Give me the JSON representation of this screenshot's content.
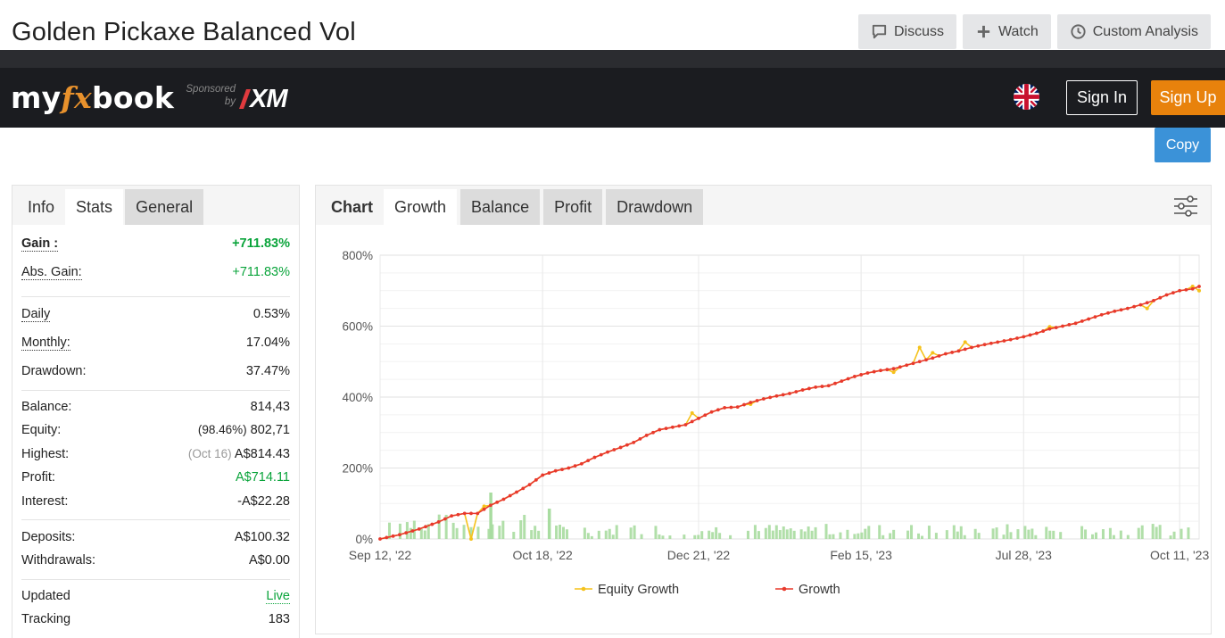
{
  "page": {
    "title": "Golden Pickaxe Balanced Vol"
  },
  "top_actions": [
    {
      "label": "Discuss",
      "icon": "comment-icon"
    },
    {
      "label": "Watch",
      "icon": "plus-icon"
    },
    {
      "label": "Custom Analysis",
      "icon": "clock-icon"
    }
  ],
  "header": {
    "logo_text_a": "my",
    "logo_text_fx": "fx",
    "logo_text_b": "book",
    "sponsor_line1": "Sponsored",
    "sponsor_line2": "by",
    "sponsor_brand": "XM",
    "signin_label": "Sign In",
    "signup_label": "Sign Up"
  },
  "copy_label": "Copy",
  "left_tabs": [
    "Info",
    "Stats",
    "General"
  ],
  "stats": {
    "gain": {
      "label": "Gain :",
      "value": "+711.83%"
    },
    "abs_gain": {
      "label": "Abs. Gain:",
      "value": "+711.83%"
    },
    "daily": {
      "label": "Daily",
      "value": "0.53%"
    },
    "monthly": {
      "label": "Monthly:",
      "value": "17.04%"
    },
    "drawdown": {
      "label": "Drawdown:",
      "value": "37.47%"
    },
    "balance": {
      "label": "Balance:",
      "value": "814,43"
    },
    "equity": {
      "label": "Equity:",
      "pct": "(98.46%)",
      "value": "802,71"
    },
    "highest": {
      "label": "Highest:",
      "date": "(Oct 16)",
      "value": "A$814.43"
    },
    "profit": {
      "label": "Profit:",
      "value": "A$714.11"
    },
    "interest": {
      "label": "Interest:",
      "value": "-A$22.28"
    },
    "deposits": {
      "label": "Deposits:",
      "value": "A$100.32"
    },
    "withdrawals": {
      "label": "Withdrawals:",
      "value": "A$0.00"
    },
    "updated": {
      "label": "Updated",
      "value": "Live"
    },
    "tracking": {
      "label": "Tracking",
      "value": "183"
    }
  },
  "chart_tabs": [
    "Chart",
    "Growth",
    "Balance",
    "Profit",
    "Drawdown"
  ],
  "colors": {
    "growth": "#e8392c",
    "equity": "#f5c21b",
    "volume": "#a8dca0",
    "signup": "#e8820c",
    "copy": "#3b92d8",
    "green": "#0aa43b"
  },
  "chart_data": {
    "type": "line",
    "yticks": [
      "800%",
      "600%",
      "400%",
      "200%",
      "0%"
    ],
    "ylim": [
      0,
      800
    ],
    "xticks": [
      "Sep 12, '22",
      "Oct 18, '22",
      "Dec 21, '22",
      "Feb 15, '23",
      "Jul 28, '23",
      "Oct 11, '23"
    ],
    "grid": true,
    "legend_position": "bottom",
    "series": [
      {
        "name": "Equity Growth",
        "color": "#f5c21b"
      },
      {
        "name": "Growth",
        "color": "#e8392c"
      }
    ],
    "growth_points": [
      [
        0,
        0
      ],
      [
        3,
        12
      ],
      [
        6,
        28
      ],
      [
        9,
        48
      ],
      [
        11,
        65
      ],
      [
        13,
        72
      ],
      [
        15,
        72
      ],
      [
        17,
        95
      ],
      [
        19,
        112
      ],
      [
        21,
        132
      ],
      [
        23,
        153
      ],
      [
        25,
        180
      ],
      [
        27,
        192
      ],
      [
        29,
        200
      ],
      [
        31,
        212
      ],
      [
        33,
        230
      ],
      [
        35,
        245
      ],
      [
        37,
        258
      ],
      [
        39,
        272
      ],
      [
        41,
        292
      ],
      [
        43,
        308
      ],
      [
        45,
        315
      ],
      [
        47,
        322
      ],
      [
        49,
        340
      ],
      [
        51,
        358
      ],
      [
        53,
        370
      ],
      [
        55,
        372
      ],
      [
        57,
        385
      ],
      [
        59,
        395
      ],
      [
        61,
        403
      ],
      [
        63,
        410
      ],
      [
        65,
        420
      ],
      [
        67,
        428
      ],
      [
        69,
        432
      ],
      [
        71,
        445
      ],
      [
        73,
        458
      ],
      [
        75,
        468
      ],
      [
        77,
        475
      ],
      [
        79,
        480
      ],
      [
        81,
        490
      ],
      [
        83,
        500
      ],
      [
        85,
        510
      ],
      [
        87,
        522
      ],
      [
        89,
        530
      ],
      [
        91,
        540
      ],
      [
        93,
        548
      ],
      [
        95,
        555
      ],
      [
        97,
        562
      ],
      [
        99,
        570
      ],
      [
        101,
        580
      ],
      [
        103,
        592
      ],
      [
        105,
        600
      ],
      [
        107,
        608
      ],
      [
        109,
        620
      ],
      [
        111,
        632
      ],
      [
        113,
        642
      ],
      [
        115,
        650
      ],
      [
        117,
        660
      ],
      [
        119,
        672
      ],
      [
        121,
        688
      ],
      [
        123,
        700
      ],
      [
        125,
        705
      ],
      [
        126,
        712
      ]
    ],
    "equity_dips": [
      [
        14,
        0
      ],
      [
        16,
        92
      ],
      [
        48,
        355
      ],
      [
        57,
        380
      ],
      [
        79,
        470
      ],
      [
        83,
        540
      ],
      [
        85,
        525
      ],
      [
        90,
        555
      ],
      [
        103,
        598
      ],
      [
        118,
        650
      ],
      [
        125,
        712
      ],
      [
        126,
        700
      ]
    ]
  }
}
